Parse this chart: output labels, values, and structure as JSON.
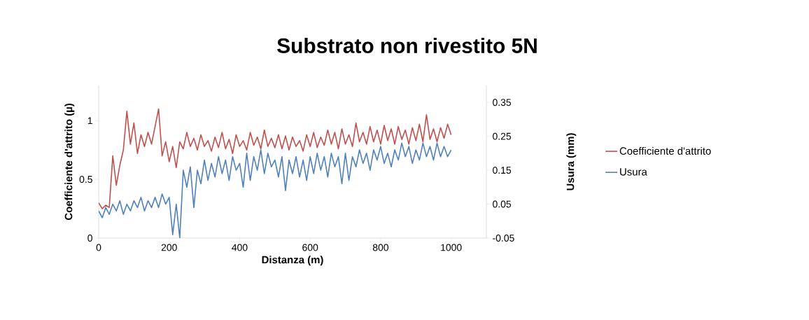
{
  "chart_data": {
    "type": "line",
    "title": "Substrato non rivestito 5N",
    "xlabel": "Distanza (m)",
    "ylabel": "Coefficiente d'attrito (µ)",
    "y2label": "Usura (mm)",
    "x": [
      0,
      10,
      20,
      30,
      40,
      50,
      60,
      70,
      80,
      90,
      100,
      110,
      120,
      130,
      140,
      150,
      160,
      170,
      180,
      190,
      200,
      210,
      220,
      230,
      240,
      250,
      260,
      270,
      280,
      290,
      300,
      310,
      320,
      330,
      340,
      350,
      360,
      370,
      380,
      390,
      400,
      410,
      420,
      430,
      440,
      450,
      460,
      470,
      480,
      490,
      500,
      510,
      520,
      530,
      540,
      550,
      560,
      570,
      580,
      590,
      600,
      610,
      620,
      630,
      640,
      650,
      660,
      670,
      680,
      690,
      700,
      710,
      720,
      730,
      740,
      750,
      760,
      770,
      780,
      790,
      800,
      810,
      820,
      830,
      840,
      850,
      860,
      870,
      880,
      890,
      900,
      910,
      920,
      930,
      940,
      950,
      960,
      970,
      980,
      990,
      1000
    ],
    "series": [
      {
        "name": "Coefficiente d'attrito",
        "color": "#c0504d",
        "values": [
          0.3,
          0.25,
          0.28,
          0.26,
          0.7,
          0.45,
          0.62,
          0.75,
          1.08,
          0.8,
          0.98,
          0.72,
          0.88,
          0.78,
          0.9,
          0.8,
          0.95,
          1.1,
          0.7,
          0.82,
          0.65,
          0.78,
          0.6,
          0.82,
          0.76,
          0.9,
          0.78,
          0.85,
          0.75,
          0.88,
          0.78,
          0.83,
          0.74,
          0.86,
          0.77,
          0.9,
          0.76,
          0.84,
          0.72,
          0.88,
          0.78,
          0.83,
          0.75,
          0.9,
          0.79,
          0.86,
          0.76,
          0.92,
          0.78,
          0.85,
          0.77,
          0.88,
          0.76,
          0.87,
          0.75,
          0.86,
          0.78,
          0.83,
          0.74,
          0.88,
          0.78,
          0.9,
          0.77,
          0.86,
          0.79,
          0.92,
          0.8,
          0.9,
          0.76,
          0.93,
          0.8,
          0.88,
          0.78,
          0.98,
          0.82,
          0.9,
          0.8,
          0.95,
          0.82,
          0.92,
          0.8,
          0.96,
          0.83,
          0.93,
          0.8,
          0.95,
          0.84,
          0.92,
          0.8,
          0.94,
          0.83,
          0.97,
          0.82,
          1.05,
          0.84,
          0.93,
          0.82,
          0.94,
          0.85,
          0.97,
          0.88
        ]
      },
      {
        "name": "Usura",
        "color": "#4f81bd",
        "axis": "y2",
        "values": [
          0.03,
          0.01,
          0.04,
          0.02,
          0.05,
          0.03,
          0.06,
          0.02,
          0.05,
          0.03,
          0.06,
          0.04,
          0.07,
          0.03,
          0.06,
          0.04,
          0.07,
          0.04,
          0.08,
          0.05,
          0.07,
          -0.04,
          0.05,
          -0.05,
          0.15,
          0.1,
          0.16,
          0.04,
          0.15,
          0.11,
          0.18,
          0.12,
          0.17,
          0.13,
          0.19,
          0.14,
          0.18,
          0.12,
          0.19,
          0.15,
          0.17,
          0.1,
          0.2,
          0.12,
          0.19,
          0.15,
          0.21,
          0.14,
          0.2,
          0.16,
          0.18,
          0.13,
          0.19,
          0.09,
          0.18,
          0.14,
          0.19,
          0.13,
          0.18,
          0.12,
          0.19,
          0.14,
          0.2,
          0.15,
          0.19,
          0.13,
          0.2,
          0.16,
          0.19,
          0.11,
          0.2,
          0.12,
          0.19,
          0.16,
          0.21,
          0.17,
          0.2,
          0.15,
          0.21,
          0.18,
          0.22,
          0.17,
          0.2,
          0.16,
          0.21,
          0.18,
          0.23,
          0.19,
          0.22,
          0.17,
          0.21,
          0.18,
          0.23,
          0.19,
          0.22,
          0.18,
          0.23,
          0.19,
          0.22,
          0.19,
          0.21
        ]
      }
    ],
    "xlim": [
      0,
      1100
    ],
    "xticks": [
      0,
      200,
      400,
      600,
      800,
      1000
    ],
    "ylim": [
      0,
      1.3
    ],
    "yticks": [
      0,
      0.5,
      1
    ],
    "y2lim": [
      -0.05,
      0.4
    ],
    "y2ticks": [
      -0.05,
      0.05,
      0.15,
      0.25,
      0.35
    ],
    "legend": "right"
  }
}
